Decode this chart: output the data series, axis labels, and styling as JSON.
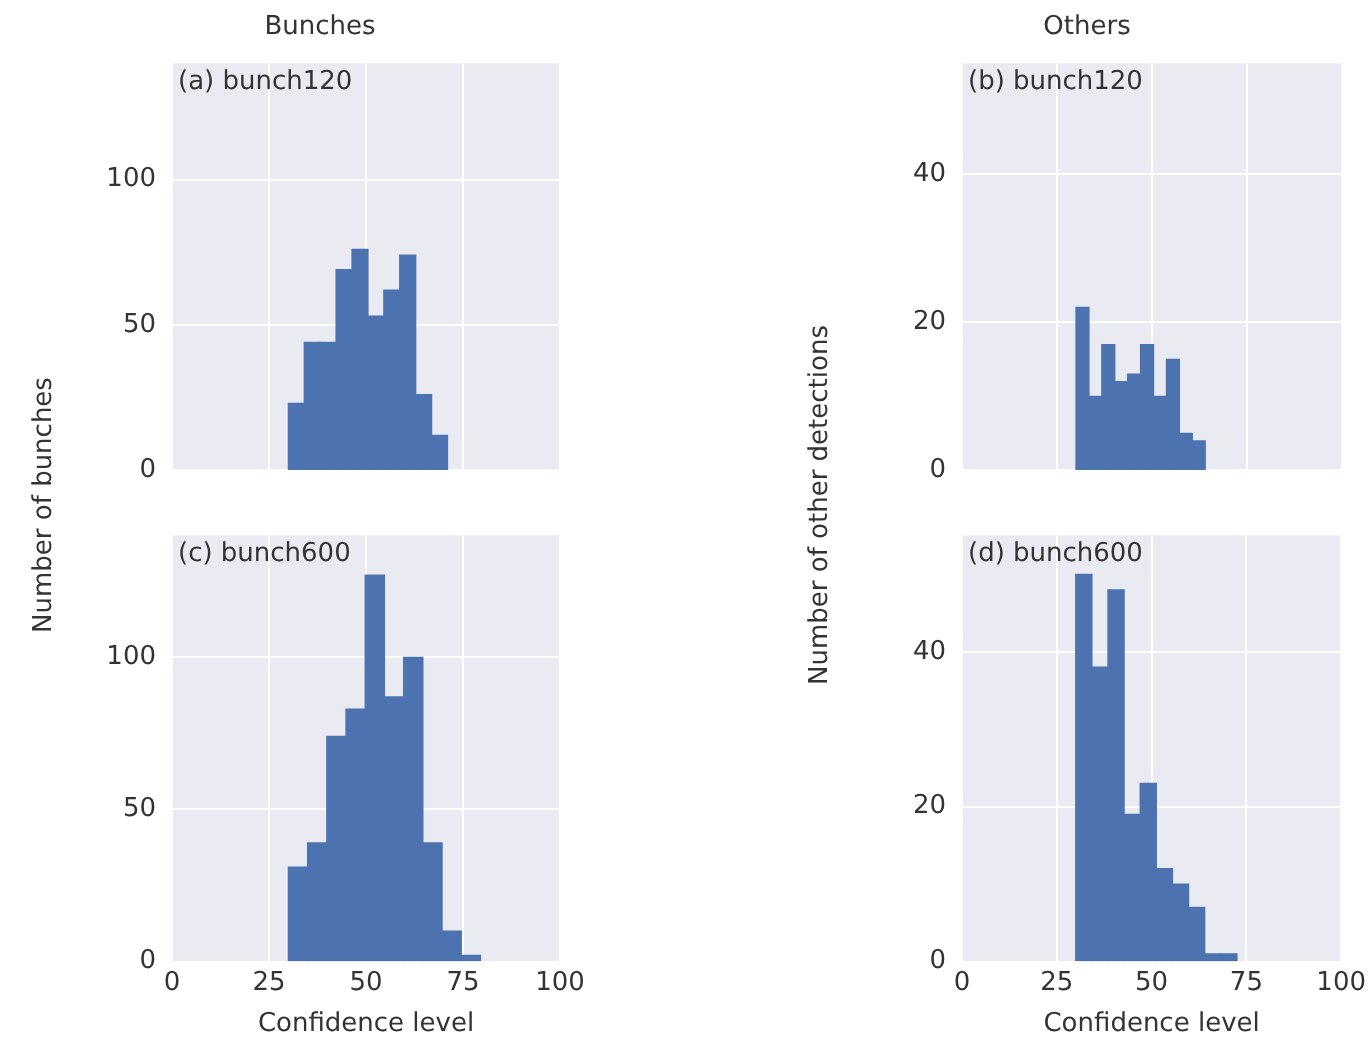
{
  "chart_data": [
    {
      "type": "histogram",
      "title": "Bunches",
      "ylabel": "Number of bunches",
      "annotations": [
        "(a) bunch120"
      ],
      "bins": [
        30,
        34.1,
        38.2,
        42.3,
        46.4,
        50.5,
        54.6,
        58.7,
        62.8,
        66.9,
        71
      ],
      "values": [
        23,
        44,
        44,
        69,
        76,
        53,
        62,
        74,
        26,
        12
      ],
      "color": "#4c72b0",
      "xlim": [
        0,
        100
      ],
      "xticks": [
        0,
        25,
        50,
        75,
        100
      ],
      "ylim": [
        0,
        140
      ],
      "yticks": [
        0,
        50,
        100
      ],
      "grid": true,
      "legend": false,
      "tick_labels": "y"
    },
    {
      "type": "histogram",
      "title": "Others",
      "ylabel": "Number of other detections",
      "annotations": [
        "(b) bunch120"
      ],
      "bins": [
        30,
        33.4,
        36.8,
        40.2,
        43.6,
        47,
        50.4,
        53.8,
        57.2,
        60.6,
        64
      ],
      "values": [
        22,
        10,
        17,
        12,
        13,
        17,
        10,
        15,
        5,
        4
      ],
      "color": "#4c72b0",
      "xlim": [
        0,
        100
      ],
      "xticks": [
        0,
        25,
        50,
        75,
        100
      ],
      "ylim": [
        0,
        55
      ],
      "yticks": [
        0,
        20,
        40
      ],
      "grid": true,
      "legend": false,
      "tick_labels": "y"
    },
    {
      "type": "histogram",
      "xlabel": "Confidence level",
      "annotations": [
        "(c) bunch600"
      ],
      "bins": [
        30,
        34.95,
        39.9,
        44.85,
        49.8,
        54.75,
        59.7,
        64.65,
        69.6,
        74.55,
        79.5
      ],
      "values": [
        31,
        39,
        74,
        83,
        127,
        87,
        100,
        39,
        10,
        2
      ],
      "color": "#4c72b0",
      "xlim": [
        0,
        100
      ],
      "xticks": [
        0,
        25,
        50,
        75,
        100
      ],
      "ylim": [
        0,
        140
      ],
      "yticks": [
        0,
        50,
        100
      ],
      "grid": true,
      "legend": false
    },
    {
      "type": "histogram",
      "xlabel": "Confidence level",
      "annotations": [
        "(d) bunch600"
      ],
      "bins": [
        30,
        34.25,
        38.5,
        42.75,
        47,
        51.25,
        55.5,
        59.75,
        64,
        68.25,
        72.5
      ],
      "values": [
        50,
        38,
        48,
        19,
        23,
        12,
        10,
        7,
        1,
        1
      ],
      "color": "#4c72b0",
      "xlim": [
        0,
        100
      ],
      "xticks": [
        0,
        25,
        50,
        75,
        100
      ],
      "ylim": [
        0,
        55
      ],
      "yticks": [
        0,
        20,
        40
      ],
      "grid": true,
      "legend": false
    }
  ]
}
